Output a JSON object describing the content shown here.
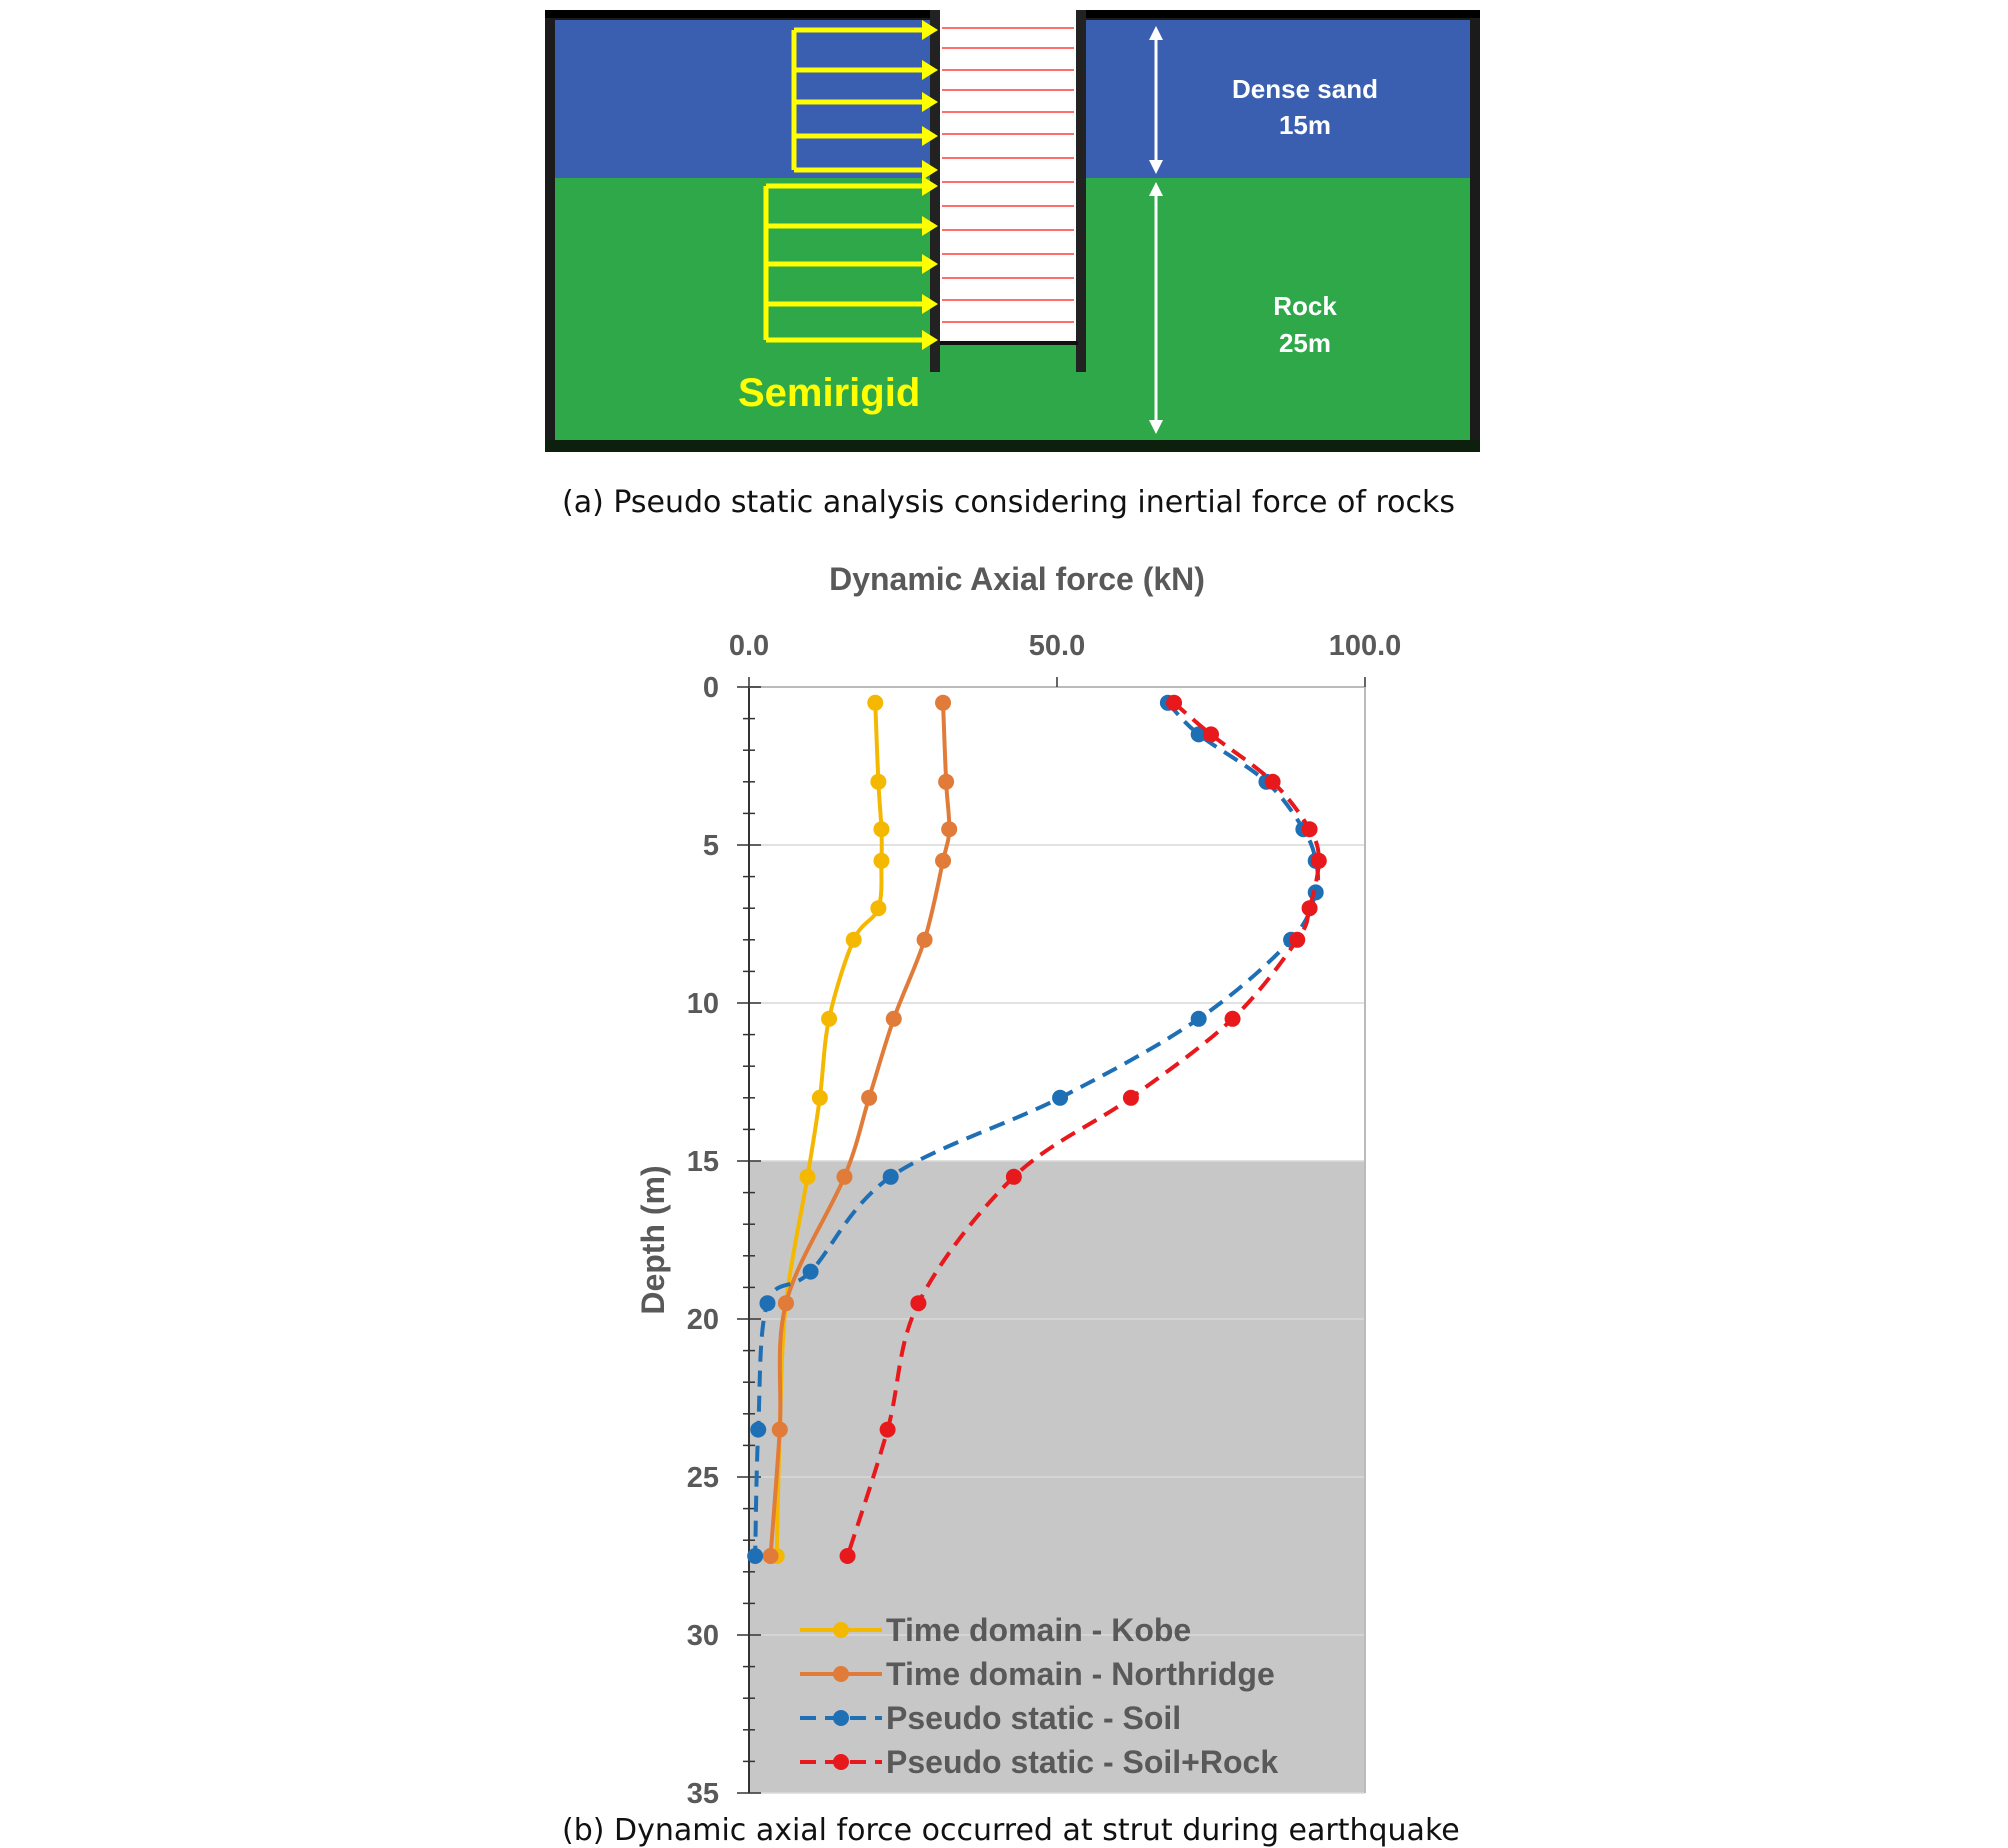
{
  "panel_a": {
    "caption": "(a) Pseudo static analysis considering inertial force of rocks",
    "layers": [
      {
        "name": "Dense sand",
        "thickness": "15m",
        "color": "#3a5fb0"
      },
      {
        "name": "Rock",
        "thickness": "25m",
        "color": "#2fa84a"
      }
    ],
    "load_label": "Semirigid",
    "arrow_color": "#ffff00",
    "strut_color": "#ff6e6e"
  },
  "panel_b": {
    "caption": "(b) Dynamic axial force occurred at strut during earthquake"
  },
  "chart_data": {
    "type": "line",
    "title": "",
    "xlabel": "Dynamic Axial force (kN)",
    "ylabel": "Depth (m)",
    "xlim": [
      0,
      100
    ],
    "ylim": [
      0,
      35
    ],
    "y_inverted": true,
    "x_axis_position": "top",
    "x_ticks": [
      "0.0",
      "50.0",
      "100.0"
    ],
    "y_ticks": [
      "0",
      "5",
      "10",
      "15",
      "20",
      "25",
      "30",
      "35"
    ],
    "shaded_region": {
      "from_depth": 15,
      "to_depth": 35,
      "color": "#c7c7c7"
    },
    "grid": "horizontal",
    "legend_position": "bottom-inside",
    "series": [
      {
        "name": "Time domain - Kobe",
        "color": "#f5b800",
        "style": "solid",
        "x": [
          20.5,
          21,
          21.5,
          21.5,
          21,
          17,
          13,
          11.5,
          9.5,
          6,
          5,
          4.5
        ],
        "y": [
          0.5,
          3.0,
          4.5,
          5.5,
          7.0,
          8.0,
          10.5,
          13.0,
          15.5,
          19.5,
          23.5,
          27.5
        ]
      },
      {
        "name": "Time domain - Northridge",
        "color": "#e07b39",
        "style": "solid",
        "x": [
          31.5,
          32,
          32.5,
          31.5,
          28.5,
          23.5,
          19.5,
          15.5,
          6,
          5,
          3.5
        ],
        "y": [
          0.5,
          3.0,
          4.5,
          5.5,
          8.0,
          10.5,
          13.0,
          15.5,
          19.5,
          23.5,
          27.5
        ]
      },
      {
        "name": "Pseudo static - Soil",
        "color": "#1f6fb5",
        "style": "dashed",
        "x": [
          68,
          73,
          84,
          90,
          92,
          92,
          88,
          73,
          50.5,
          23,
          10,
          3,
          1.5,
          1
        ],
        "y": [
          0.5,
          1.5,
          3.0,
          4.5,
          5.5,
          6.5,
          8.0,
          10.5,
          13.0,
          15.5,
          18.5,
          19.5,
          23.5,
          27.5
        ]
      },
      {
        "name": "Pseudo static - Soil+Rock",
        "color": "#e8191c",
        "style": "dashed",
        "x": [
          69,
          75,
          85,
          91,
          92.5,
          91,
          89,
          78.5,
          62,
          43,
          27.5,
          22.5,
          16
        ],
        "y": [
          0.5,
          1.5,
          3.0,
          4.5,
          5.5,
          7.0,
          8.0,
          10.5,
          13.0,
          15.5,
          19.5,
          23.5,
          27.5
        ]
      }
    ]
  }
}
